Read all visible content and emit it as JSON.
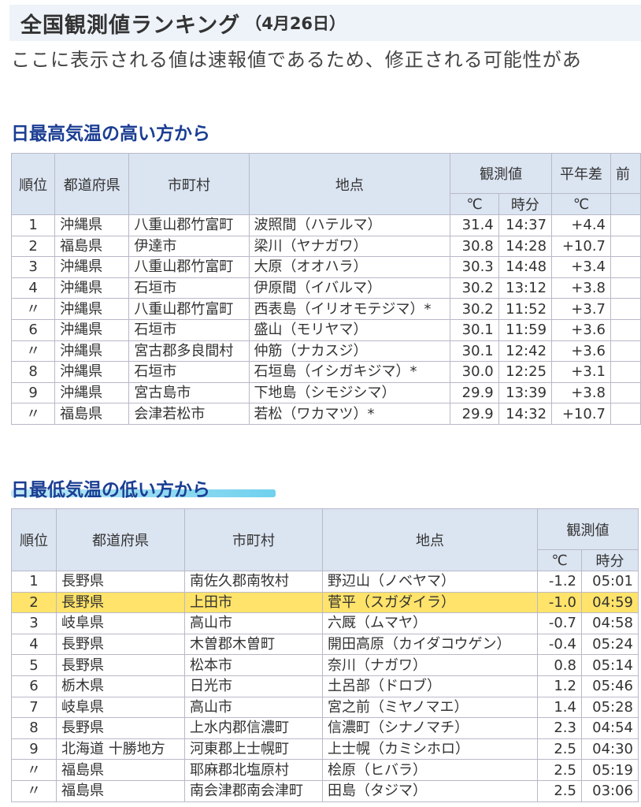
{
  "title": {
    "main": "全国観測値ランキング",
    "date": "（4月26日）"
  },
  "notice": "ここに表示される値は速報値であるため、修正される可能性があ",
  "high": {
    "heading": "日最高気温の高い方から",
    "headers": {
      "rank": "順位",
      "pref": "都道府県",
      "city": "市町村",
      "point": "地点",
      "obs": "観測値",
      "diff": "平年差",
      "extra": "前",
      "unit_temp": "℃",
      "unit_time": "時分",
      "unit_diff": "℃"
    },
    "rows": [
      {
        "rank": "1",
        "pref": "沖縄県",
        "city": "八重山郡竹富町",
        "point": "波照間（ハテルマ）",
        "temp": "31.4",
        "time": "14:37",
        "diff": "+4.4"
      },
      {
        "rank": "2",
        "pref": "福島県",
        "city": "伊達市",
        "point": "梁川（ヤナガワ）",
        "temp": "30.8",
        "time": "14:28",
        "diff": "+10.7"
      },
      {
        "rank": "3",
        "pref": "沖縄県",
        "city": "八重山郡竹富町",
        "point": "大原（オオハラ）",
        "temp": "30.3",
        "time": "14:48",
        "diff": "+3.4"
      },
      {
        "rank": "4",
        "pref": "沖縄県",
        "city": "石垣市",
        "point": "伊原間（イバルマ）",
        "temp": "30.2",
        "time": "13:12",
        "diff": "+3.8"
      },
      {
        "rank": "〃",
        "pref": "沖縄県",
        "city": "八重山郡竹富町",
        "point": "西表島（イリオモテジマ）*",
        "temp": "30.2",
        "time": "11:52",
        "diff": "+3.7"
      },
      {
        "rank": "6",
        "pref": "沖縄県",
        "city": "石垣市",
        "point": "盛山（モリヤマ）",
        "temp": "30.1",
        "time": "11:59",
        "diff": "+3.6"
      },
      {
        "rank": "〃",
        "pref": "沖縄県",
        "city": "宮古郡多良間村",
        "point": "仲筋（ナカスジ）",
        "temp": "30.1",
        "time": "12:42",
        "diff": "+3.6"
      },
      {
        "rank": "8",
        "pref": "沖縄県",
        "city": "石垣市",
        "point": "石垣島（イシガキジマ）*",
        "temp": "30.0",
        "time": "12:25",
        "diff": "+3.1"
      },
      {
        "rank": "9",
        "pref": "沖縄県",
        "city": "宮古島市",
        "point": "下地島（シモジシマ）",
        "temp": "29.9",
        "time": "13:39",
        "diff": "+3.8"
      },
      {
        "rank": "〃",
        "pref": "福島県",
        "city": "会津若松市",
        "point": "若松（ワカマツ）*",
        "temp": "29.9",
        "time": "14:32",
        "diff": "+10.7"
      }
    ]
  },
  "low": {
    "heading": "日最低気温の低い方から",
    "headers": {
      "rank": "順位",
      "pref": "都道府県",
      "city": "市町村",
      "point": "地点",
      "obs": "観測値",
      "unit_temp": "℃",
      "unit_time": "時分"
    },
    "rows": [
      {
        "rank": "1",
        "pref": "長野県",
        "city": "南佐久郡南牧村",
        "point": "野辺山（ノベヤマ）",
        "temp": "-1.2",
        "time": "05:01"
      },
      {
        "rank": "2",
        "pref": "長野県",
        "city": "上田市",
        "point": "菅平（スガダイラ）",
        "temp": "-1.0",
        "time": "04:59",
        "highlight": true
      },
      {
        "rank": "3",
        "pref": "岐阜県",
        "city": "高山市",
        "point": "六厩（ムマヤ）",
        "temp": "-0.7",
        "time": "04:58"
      },
      {
        "rank": "4",
        "pref": "長野県",
        "city": "木曽郡木曽町",
        "point": "開田高原（カイダコウゲン）",
        "temp": "-0.4",
        "time": "05:24"
      },
      {
        "rank": "5",
        "pref": "長野県",
        "city": "松本市",
        "point": "奈川（ナガワ）",
        "temp": "0.8",
        "time": "05:14"
      },
      {
        "rank": "6",
        "pref": "栃木県",
        "city": "日光市",
        "point": "土呂部（ドロブ）",
        "temp": "1.2",
        "time": "05:46"
      },
      {
        "rank": "7",
        "pref": "岐阜県",
        "city": "高山市",
        "point": "宮之前（ミヤノマエ）",
        "temp": "1.4",
        "time": "05:28"
      },
      {
        "rank": "8",
        "pref": "長野県",
        "city": "上水内郡信濃町",
        "point": "信濃町（シナノマチ）",
        "temp": "2.3",
        "time": "04:54"
      },
      {
        "rank": "9",
        "pref": "北海道 十勝地方",
        "city": "河東郡上士幌町",
        "point": "上士幌（カミシホロ）",
        "temp": "2.5",
        "time": "04:30"
      },
      {
        "rank": "〃",
        "pref": "福島県",
        "city": "耶麻郡北塩原村",
        "point": "桧原（ヒバラ）",
        "temp": "2.5",
        "time": "05:19"
      },
      {
        "rank": "〃",
        "pref": "福島県",
        "city": "南会津郡南会津町",
        "point": "田島（タジマ）",
        "temp": "2.5",
        "time": "03:06"
      }
    ]
  },
  "colors": {
    "heading": "#1b3e93",
    "header_bg": "#dbe4f1",
    "highlight": "#ffe36a",
    "border": "#b9b9c9"
  }
}
